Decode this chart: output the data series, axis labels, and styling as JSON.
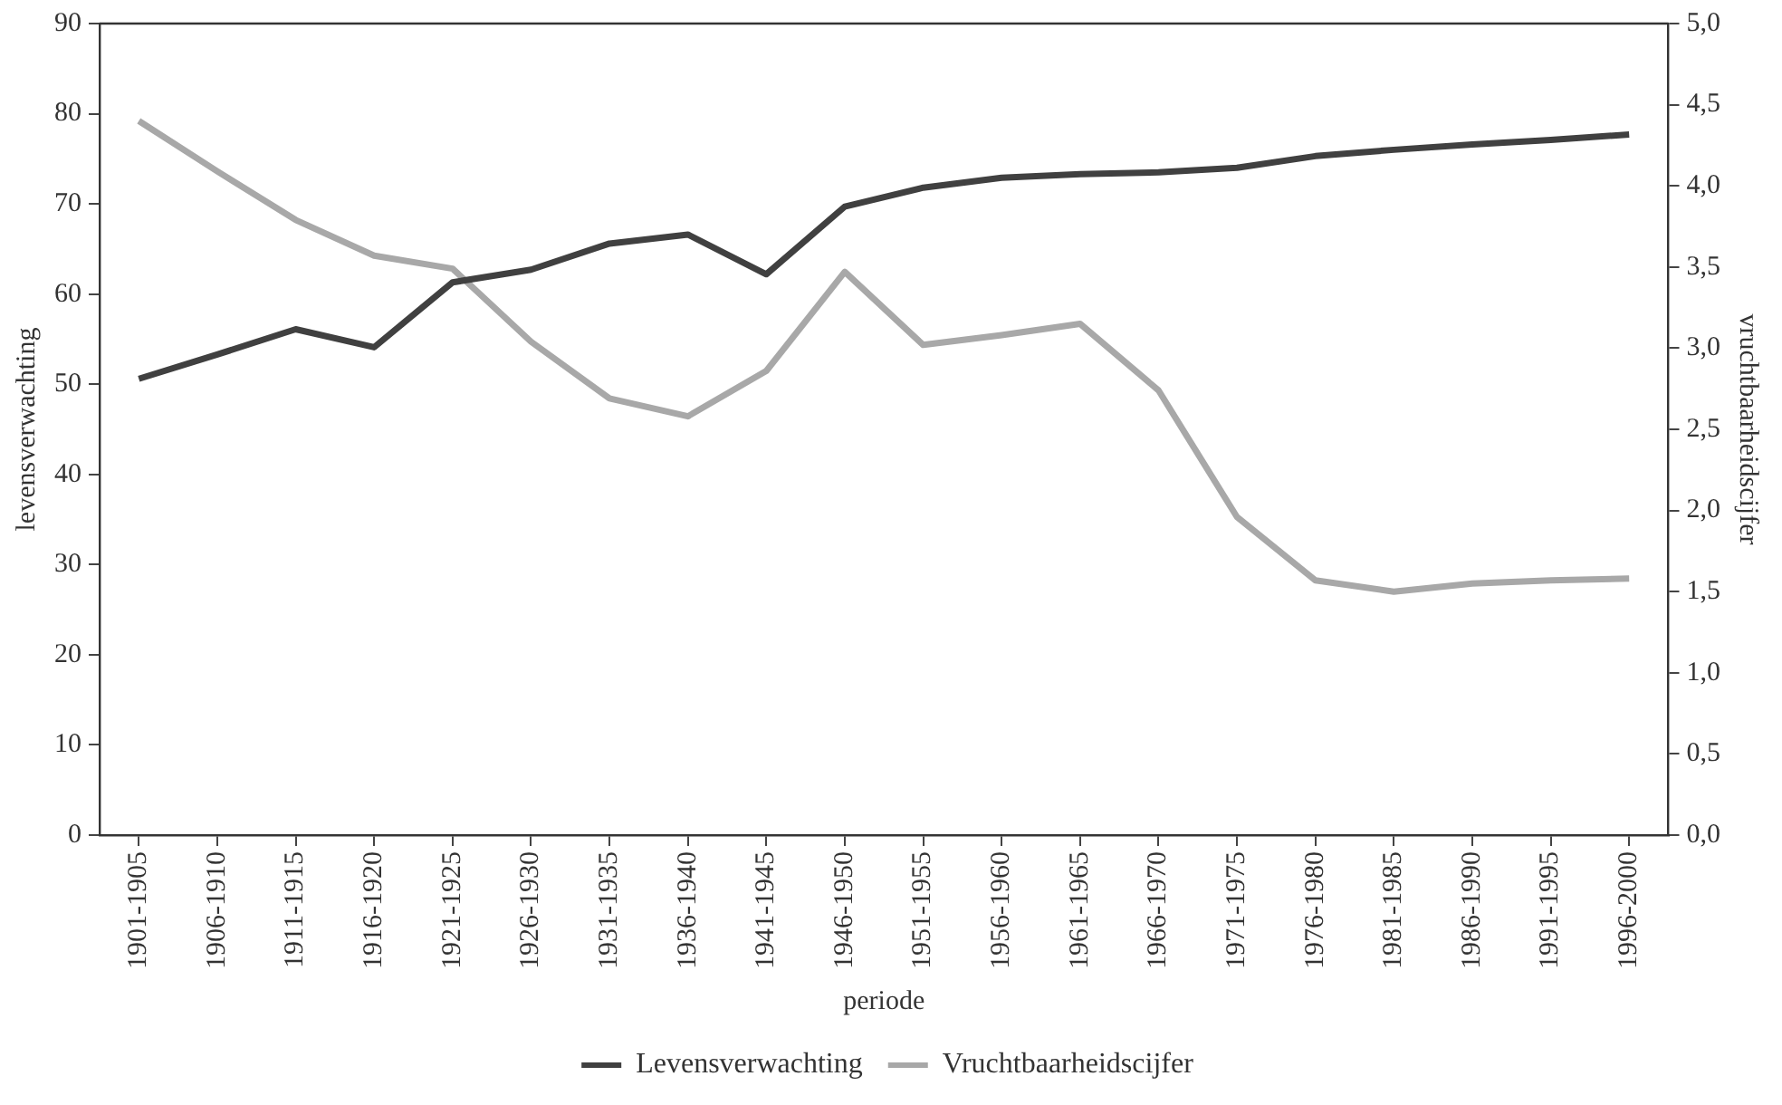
{
  "chart_data": {
    "type": "line",
    "xlabel": "periode",
    "ylabel": "levensverwachting",
    "y2label": "vruchtbaarheidscijfer",
    "categories": [
      "1901-1905",
      "1906-1910",
      "1911-1915",
      "1916-1920",
      "1921-1925",
      "1926-1930",
      "1931-1935",
      "1936-1940",
      "1941-1945",
      "1946-1950",
      "1951-1955",
      "1956-1960",
      "1961-1965",
      "1966-1970",
      "1971-1975",
      "1976-1980",
      "1981-1985",
      "1986-1990",
      "1991-1995",
      "1996-2000"
    ],
    "series": [
      {
        "name": "Levensverwachting",
        "color": "#404040",
        "values": [
          50.6,
          53.3,
          56.1,
          54.1,
          61.3,
          62.7,
          65.6,
          66.6,
          62.2,
          69.7,
          71.8,
          72.9,
          73.3,
          73.5,
          74.0,
          75.3,
          76.0,
          76.6,
          77.1,
          77.7
        ]
      },
      {
        "name": "Vruchtbaarheidscijfer",
        "color": "#a8a8a8",
        "axis": "y2",
        "values": [
          4.4,
          4.09,
          3.79,
          3.57,
          3.49,
          3.04,
          2.69,
          2.58,
          2.86,
          3.47,
          3.02,
          3.08,
          3.15,
          2.74,
          1.96,
          1.57,
          1.5,
          1.55,
          1.57,
          1.58
        ]
      }
    ],
    "ylim": [
      0,
      90
    ],
    "yticks": [
      0,
      10,
      20,
      30,
      40,
      50,
      60,
      70,
      80,
      90
    ],
    "y2lim": [
      0,
      5
    ],
    "y2ticks": [
      {
        "value": 0,
        "label": "0,0"
      },
      {
        "value": 0.5,
        "label": "0,5"
      },
      {
        "value": 1,
        "label": "1,0"
      },
      {
        "value": 1.5,
        "label": "1,5"
      },
      {
        "value": 2,
        "label": "2,0"
      },
      {
        "value": 2.5,
        "label": "2,5"
      },
      {
        "value": 3,
        "label": "3,0"
      },
      {
        "value": 3.5,
        "label": "3,5"
      },
      {
        "value": 4,
        "label": "4,0"
      },
      {
        "value": 4.5,
        "label": "4,5"
      },
      {
        "value": 5,
        "label": "5,0"
      }
    ],
    "grid": false,
    "legend": "bottom",
    "marker": "none",
    "line_style": "solid"
  }
}
